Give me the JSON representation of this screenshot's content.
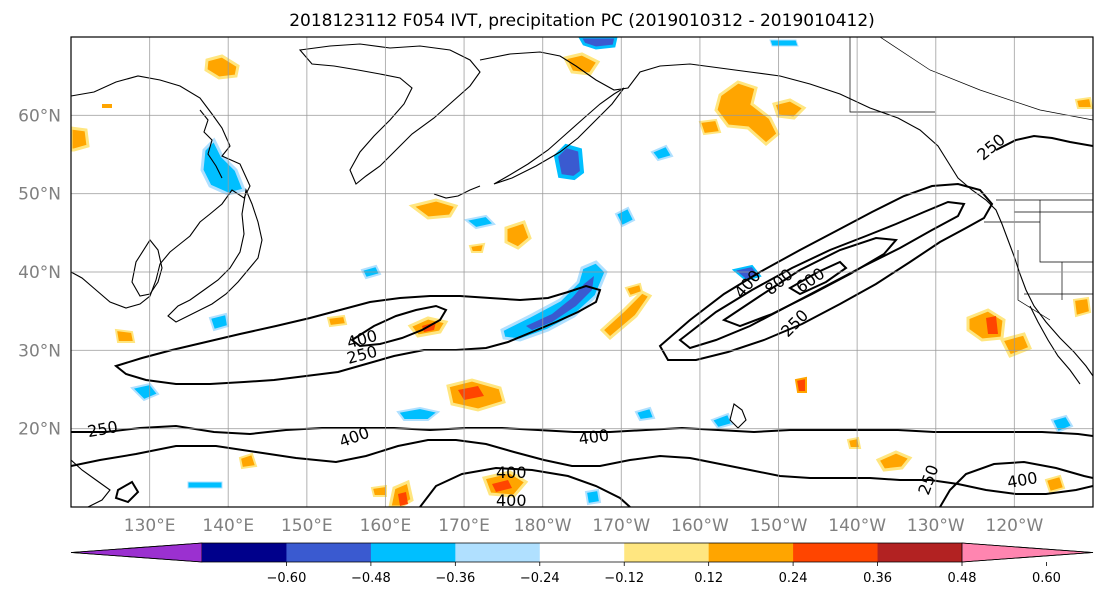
{
  "title": "2018123112 F054 IVT, precipitation PC (2019010312 - 2019010412)",
  "map": {
    "lat_labels": [
      {
        "text": "60°N",
        "lat": 60
      },
      {
        "text": "50°N",
        "lat": 50
      },
      {
        "text": "40°N",
        "lat": 40
      },
      {
        "text": "30°N",
        "lat": 30
      },
      {
        "text": "20°N",
        "lat": 20
      }
    ],
    "lon_labels": [
      {
        "text": "130°E",
        "lon": 130
      },
      {
        "text": "140°E",
        "lon": 140
      },
      {
        "text": "150°E",
        "lon": 150
      },
      {
        "text": "160°E",
        "lon": 160
      },
      {
        "text": "170°E",
        "lon": 170
      },
      {
        "text": "180°W",
        "lon": 180
      },
      {
        "text": "170°W",
        "lon": 190
      },
      {
        "text": "160°W",
        "lon": 200
      },
      {
        "text": "150°W",
        "lon": 210
      },
      {
        "text": "140°W",
        "lon": 220
      },
      {
        "text": "130°W",
        "lon": 230
      },
      {
        "text": "120°W",
        "lon": 240
      }
    ],
    "lon_range": [
      120,
      250
    ],
    "lat_range": [
      10,
      70
    ],
    "grid": true,
    "contour_labels": [
      {
        "text": "400",
        "lon": 157,
        "lat": 31.5,
        "rot": -15
      },
      {
        "text": "250",
        "lon": 157,
        "lat": 29.5,
        "rot": -15
      },
      {
        "text": "400",
        "lon": 206,
        "lat": 38.5,
        "rot": -50
      },
      {
        "text": "800",
        "lon": 210,
        "lat": 38.8,
        "rot": -40
      },
      {
        "text": "600",
        "lon": 214,
        "lat": 39.0,
        "rot": -35
      },
      {
        "text": "250",
        "lon": 212,
        "lat": 33.5,
        "rot": -45
      },
      {
        "text": "250",
        "lon": 237,
        "lat": 56.0,
        "rot": -40
      },
      {
        "text": "250",
        "lon": 124,
        "lat": 20.0,
        "rot": -10
      },
      {
        "text": "400",
        "lon": 156,
        "lat": 19.0,
        "rot": -20
      },
      {
        "text": "400",
        "lon": 186.5,
        "lat": 19.0,
        "rot": -8
      },
      {
        "text": "400",
        "lon": 176,
        "lat": 14.5,
        "rot": 0
      },
      {
        "text": "400",
        "lon": 176,
        "lat": 10.9,
        "rot": 0
      },
      {
        "text": "250",
        "lon": 229,
        "lat": 13.5,
        "rot": -70
      },
      {
        "text": "400",
        "lon": 241,
        "lat": 13.5,
        "rot": -10
      }
    ]
  },
  "colorbar": {
    "colors": [
      "#9b30d0",
      "#00008b",
      "#3a5ad0",
      "#00bfff",
      "#b0e0ff",
      "#ffffff",
      "#ffe680",
      "#ffa500",
      "#ff4500",
      "#b22222",
      "#ff85b0"
    ],
    "tick_labels": [
      "−0.60",
      "−0.48",
      "−0.36",
      "−0.24",
      "−0.12",
      "0.12",
      "0.24",
      "0.36",
      "0.48",
      "0.60"
    ],
    "extend": "both"
  }
}
